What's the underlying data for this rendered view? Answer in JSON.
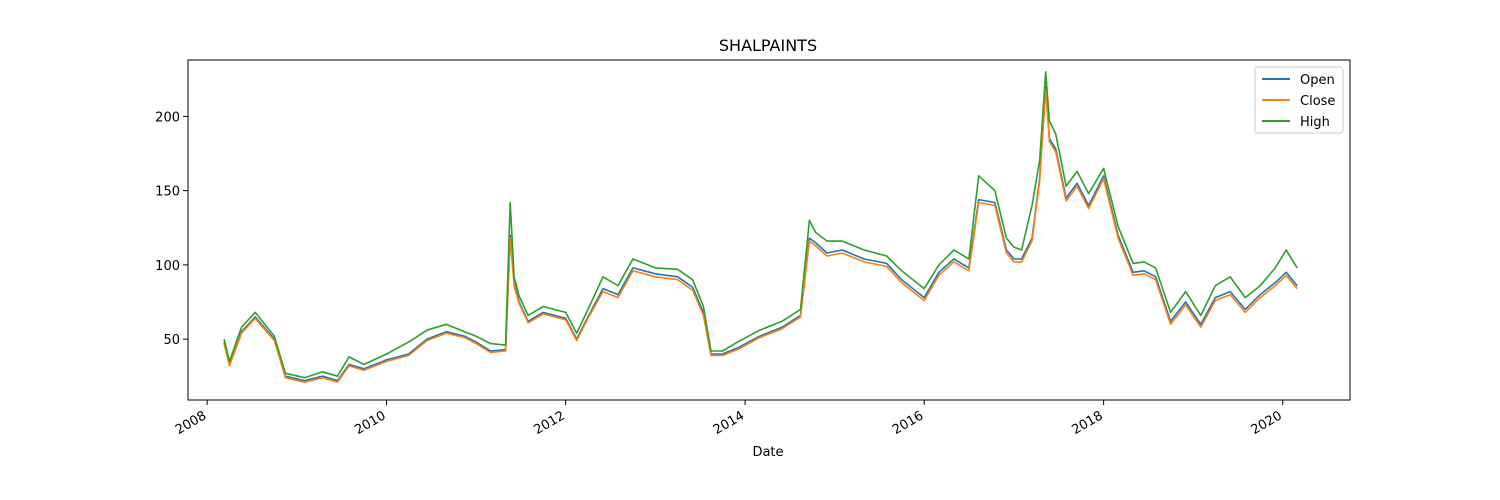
{
  "chart_data": {
    "type": "line",
    "title": "SHALPAINTS",
    "xlabel": "Date",
    "ylabel": "",
    "xlim": [
      "2007-10-15",
      "2020-10-01"
    ],
    "ylim": [
      9,
      238
    ],
    "x_ticks": [
      "2008",
      "2010",
      "2012",
      "2014",
      "2016",
      "2018",
      "2020"
    ],
    "y_ticks": [
      50,
      100,
      150,
      200
    ],
    "grid": false,
    "legend_position": "top-right",
    "x": [
      "2008-03-10",
      "2008-04-01",
      "2008-05-20",
      "2008-07-15",
      "2008-10-01",
      "2008-11-15",
      "2009-02-01",
      "2009-04-15",
      "2009-06-15",
      "2009-08-01",
      "2009-10-01",
      "2010-01-01",
      "2010-04-01",
      "2010-06-15",
      "2010-09-01",
      "2010-11-15",
      "2011-01-01",
      "2011-03-01",
      "2011-05-01",
      "2011-05-20",
      "2011-06-05",
      "2011-06-25",
      "2011-08-01",
      "2011-10-01",
      "2012-01-01",
      "2012-02-15",
      "2012-04-01",
      "2012-06-01",
      "2012-08-01",
      "2012-10-01",
      "2013-01-01",
      "2013-04-01",
      "2013-06-01",
      "2013-07-15",
      "2013-08-15",
      "2013-10-01",
      "2013-12-01",
      "2014-03-01",
      "2014-06-01",
      "2014-08-15",
      "2014-09-20",
      "2014-10-15",
      "2014-12-01",
      "2015-02-01",
      "2015-05-01",
      "2015-08-01",
      "2015-10-01",
      "2016-01-01",
      "2016-03-01",
      "2016-05-01",
      "2016-07-01",
      "2016-08-10",
      "2016-10-15",
      "2016-12-01",
      "2017-01-01",
      "2017-02-01",
      "2017-03-15",
      "2017-04-15",
      "2017-05-10",
      "2017-05-25",
      "2017-06-20",
      "2017-08-01",
      "2017-09-15",
      "2017-11-01",
      "2018-01-01",
      "2018-03-01",
      "2018-05-01",
      "2018-06-15",
      "2018-08-01",
      "2018-10-01",
      "2018-12-01",
      "2019-02-01",
      "2019-04-01",
      "2019-06-01",
      "2019-08-01",
      "2019-10-01",
      "2019-12-01",
      "2020-01-15",
      "2020-02-29"
    ],
    "series": [
      {
        "name": "Open",
        "color": "#1f77b4",
        "values": [
          48,
          33,
          55,
          65,
          50,
          25,
          22,
          25,
          22,
          33,
          30,
          36,
          40,
          50,
          55,
          52,
          48,
          42,
          43,
          120,
          88,
          75,
          62,
          68,
          64,
          50,
          65,
          84,
          80,
          98,
          94,
          92,
          85,
          68,
          40,
          40,
          44,
          52,
          58,
          66,
          118,
          115,
          108,
          110,
          104,
          101,
          90,
          78,
          95,
          104,
          98,
          144,
          142,
          110,
          104,
          104,
          118,
          158,
          220,
          185,
          178,
          145,
          155,
          140,
          160,
          120,
          95,
          96,
          92,
          62,
          75,
          60,
          78,
          82,
          70,
          80,
          88,
          95,
          86
        ]
      },
      {
        "name": "Close",
        "color": "#ff7f0e",
        "values": [
          47,
          32,
          54,
          64,
          49,
          24,
          21,
          24,
          21,
          32,
          29,
          35,
          39,
          49,
          54,
          51,
          47,
          41,
          42,
          118,
          86,
          74,
          61,
          67,
          63,
          49,
          64,
          82,
          78,
          96,
          92,
          90,
          83,
          66,
          39,
          39,
          43,
          51,
          57,
          65,
          116,
          113,
          106,
          108,
          102,
          99,
          88,
          76,
          93,
          102,
          96,
          142,
          140,
          108,
          102,
          102,
          116,
          156,
          218,
          183,
          176,
          143,
          153,
          138,
          158,
          118,
          93,
          94,
          90,
          60,
          73,
          58,
          76,
          80,
          68,
          78,
          86,
          93,
          84
        ]
      },
      {
        "name": "High",
        "color": "#2ca02c",
        "values": [
          50,
          35,
          58,
          68,
          52,
          27,
          24,
          28,
          25,
          38,
          33,
          40,
          48,
          56,
          60,
          55,
          52,
          47,
          46,
          142,
          92,
          79,
          66,
          72,
          68,
          54,
          70,
          92,
          86,
          104,
          98,
          97,
          90,
          72,
          42,
          42,
          48,
          56,
          62,
          70,
          130,
          122,
          116,
          116,
          110,
          106,
          96,
          84,
          100,
          110,
          104,
          160,
          150,
          118,
          112,
          110,
          140,
          170,
          230,
          197,
          188,
          153,
          163,
          148,
          165,
          126,
          101,
          102,
          98,
          68,
          82,
          66,
          86,
          92,
          78,
          86,
          98,
          110,
          98
        ]
      }
    ]
  }
}
